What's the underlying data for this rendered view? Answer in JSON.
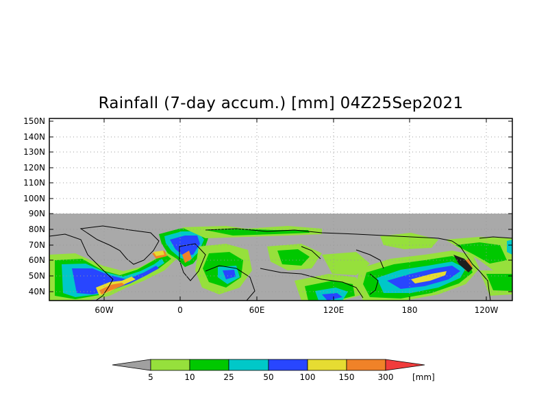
{
  "title": "Rainfall (7-day accum.) [mm] 04Z25Sep2021",
  "lat_labels": [
    "150N",
    "140N",
    "130N",
    "120N",
    "110N",
    "100N",
    "90N",
    "80N",
    "70N",
    "60N",
    "50N",
    "40N"
  ],
  "lon_labels": [
    "60W",
    "0",
    "60E",
    "120E",
    "180",
    "120W"
  ],
  "legend": {
    "breaks": [
      "5",
      "10",
      "25",
      "50",
      "100",
      "150",
      "300"
    ],
    "unit": "[mm]",
    "colors": {
      "below_5": "#a0a0a0",
      "5-10": "#96e03c",
      "10-25": "#00c800",
      "25-50": "#00c8c8",
      "50-100": "#2846ff",
      "100-150": "#e6dc32",
      "150-300": "#f08228",
      "above_300": "#f03c3c"
    }
  },
  "colors": {
    "no_data": "#a9a9a9",
    "coast": "#000000",
    "grid": "#999999"
  }
}
